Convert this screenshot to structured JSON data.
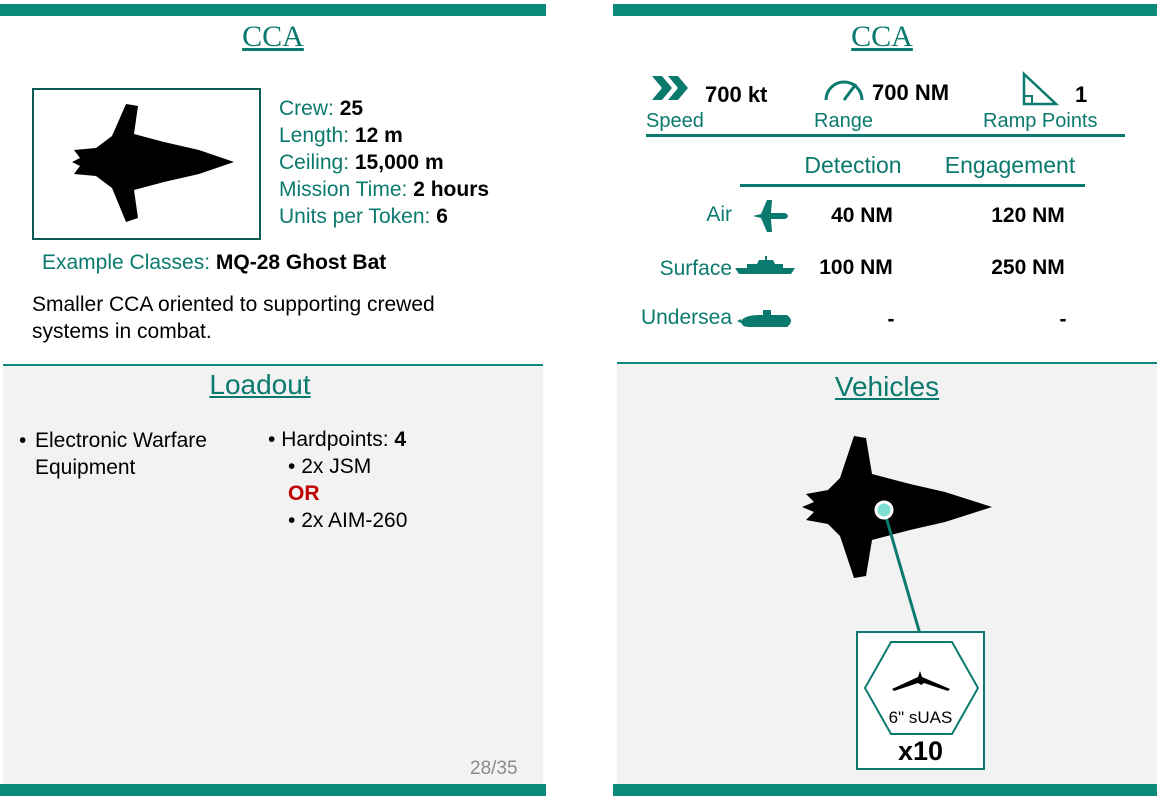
{
  "card_front": {
    "title": "CCA",
    "stats": [
      {
        "label": "Crew: ",
        "value": "25"
      },
      {
        "label": "Length: ",
        "value": "12 m"
      },
      {
        "label": "Ceiling: ",
        "value": "15,000 m"
      },
      {
        "label": "Mission Time: ",
        "value": "2 hours"
      },
      {
        "label": "Units per Token: ",
        "value": "6"
      }
    ],
    "example_label": "Example Classes: ",
    "example_value": "MQ-28 Ghost Bat",
    "description": "Smaller CCA oriented to supporting crewed systems in combat.",
    "loadout_title": "Loadout",
    "loadout_left": [
      "Electronic Warfare",
      "Equipment"
    ],
    "hardpoints_label": "Hardpoints: ",
    "hardpoints_value": "4",
    "option_a": "2x JSM",
    "or_text": "OR",
    "option_b": "2x AIM-260",
    "page_number": "28/35"
  },
  "card_back": {
    "title": "CCA",
    "speed_value": "700 kt",
    "speed_label": "Speed",
    "range_value": "700 NM",
    "range_label": "Range",
    "ramp_value": "1",
    "ramp_label": "Ramp Points",
    "detection_header": "Detection",
    "engagement_header": "Engagement",
    "rows": [
      {
        "label": "Air",
        "detection": "40 NM",
        "engagement": "120 NM",
        "icon": "plane-icon"
      },
      {
        "label": "Surface",
        "detection": "100 NM",
        "engagement": "250 NM",
        "icon": "ship-icon"
      },
      {
        "label": "Undersea",
        "detection": "-",
        "engagement": "-",
        "icon": "submarine-icon"
      }
    ],
    "vehicles_title": "Vehicles",
    "suas_label": "6\" sUAS",
    "suas_count": "x10"
  },
  "colors": {
    "accent": "#0b8a7b",
    "text_accent": "#0b7a6e",
    "warning": "#c00000",
    "panel": "#f2f2f2"
  }
}
